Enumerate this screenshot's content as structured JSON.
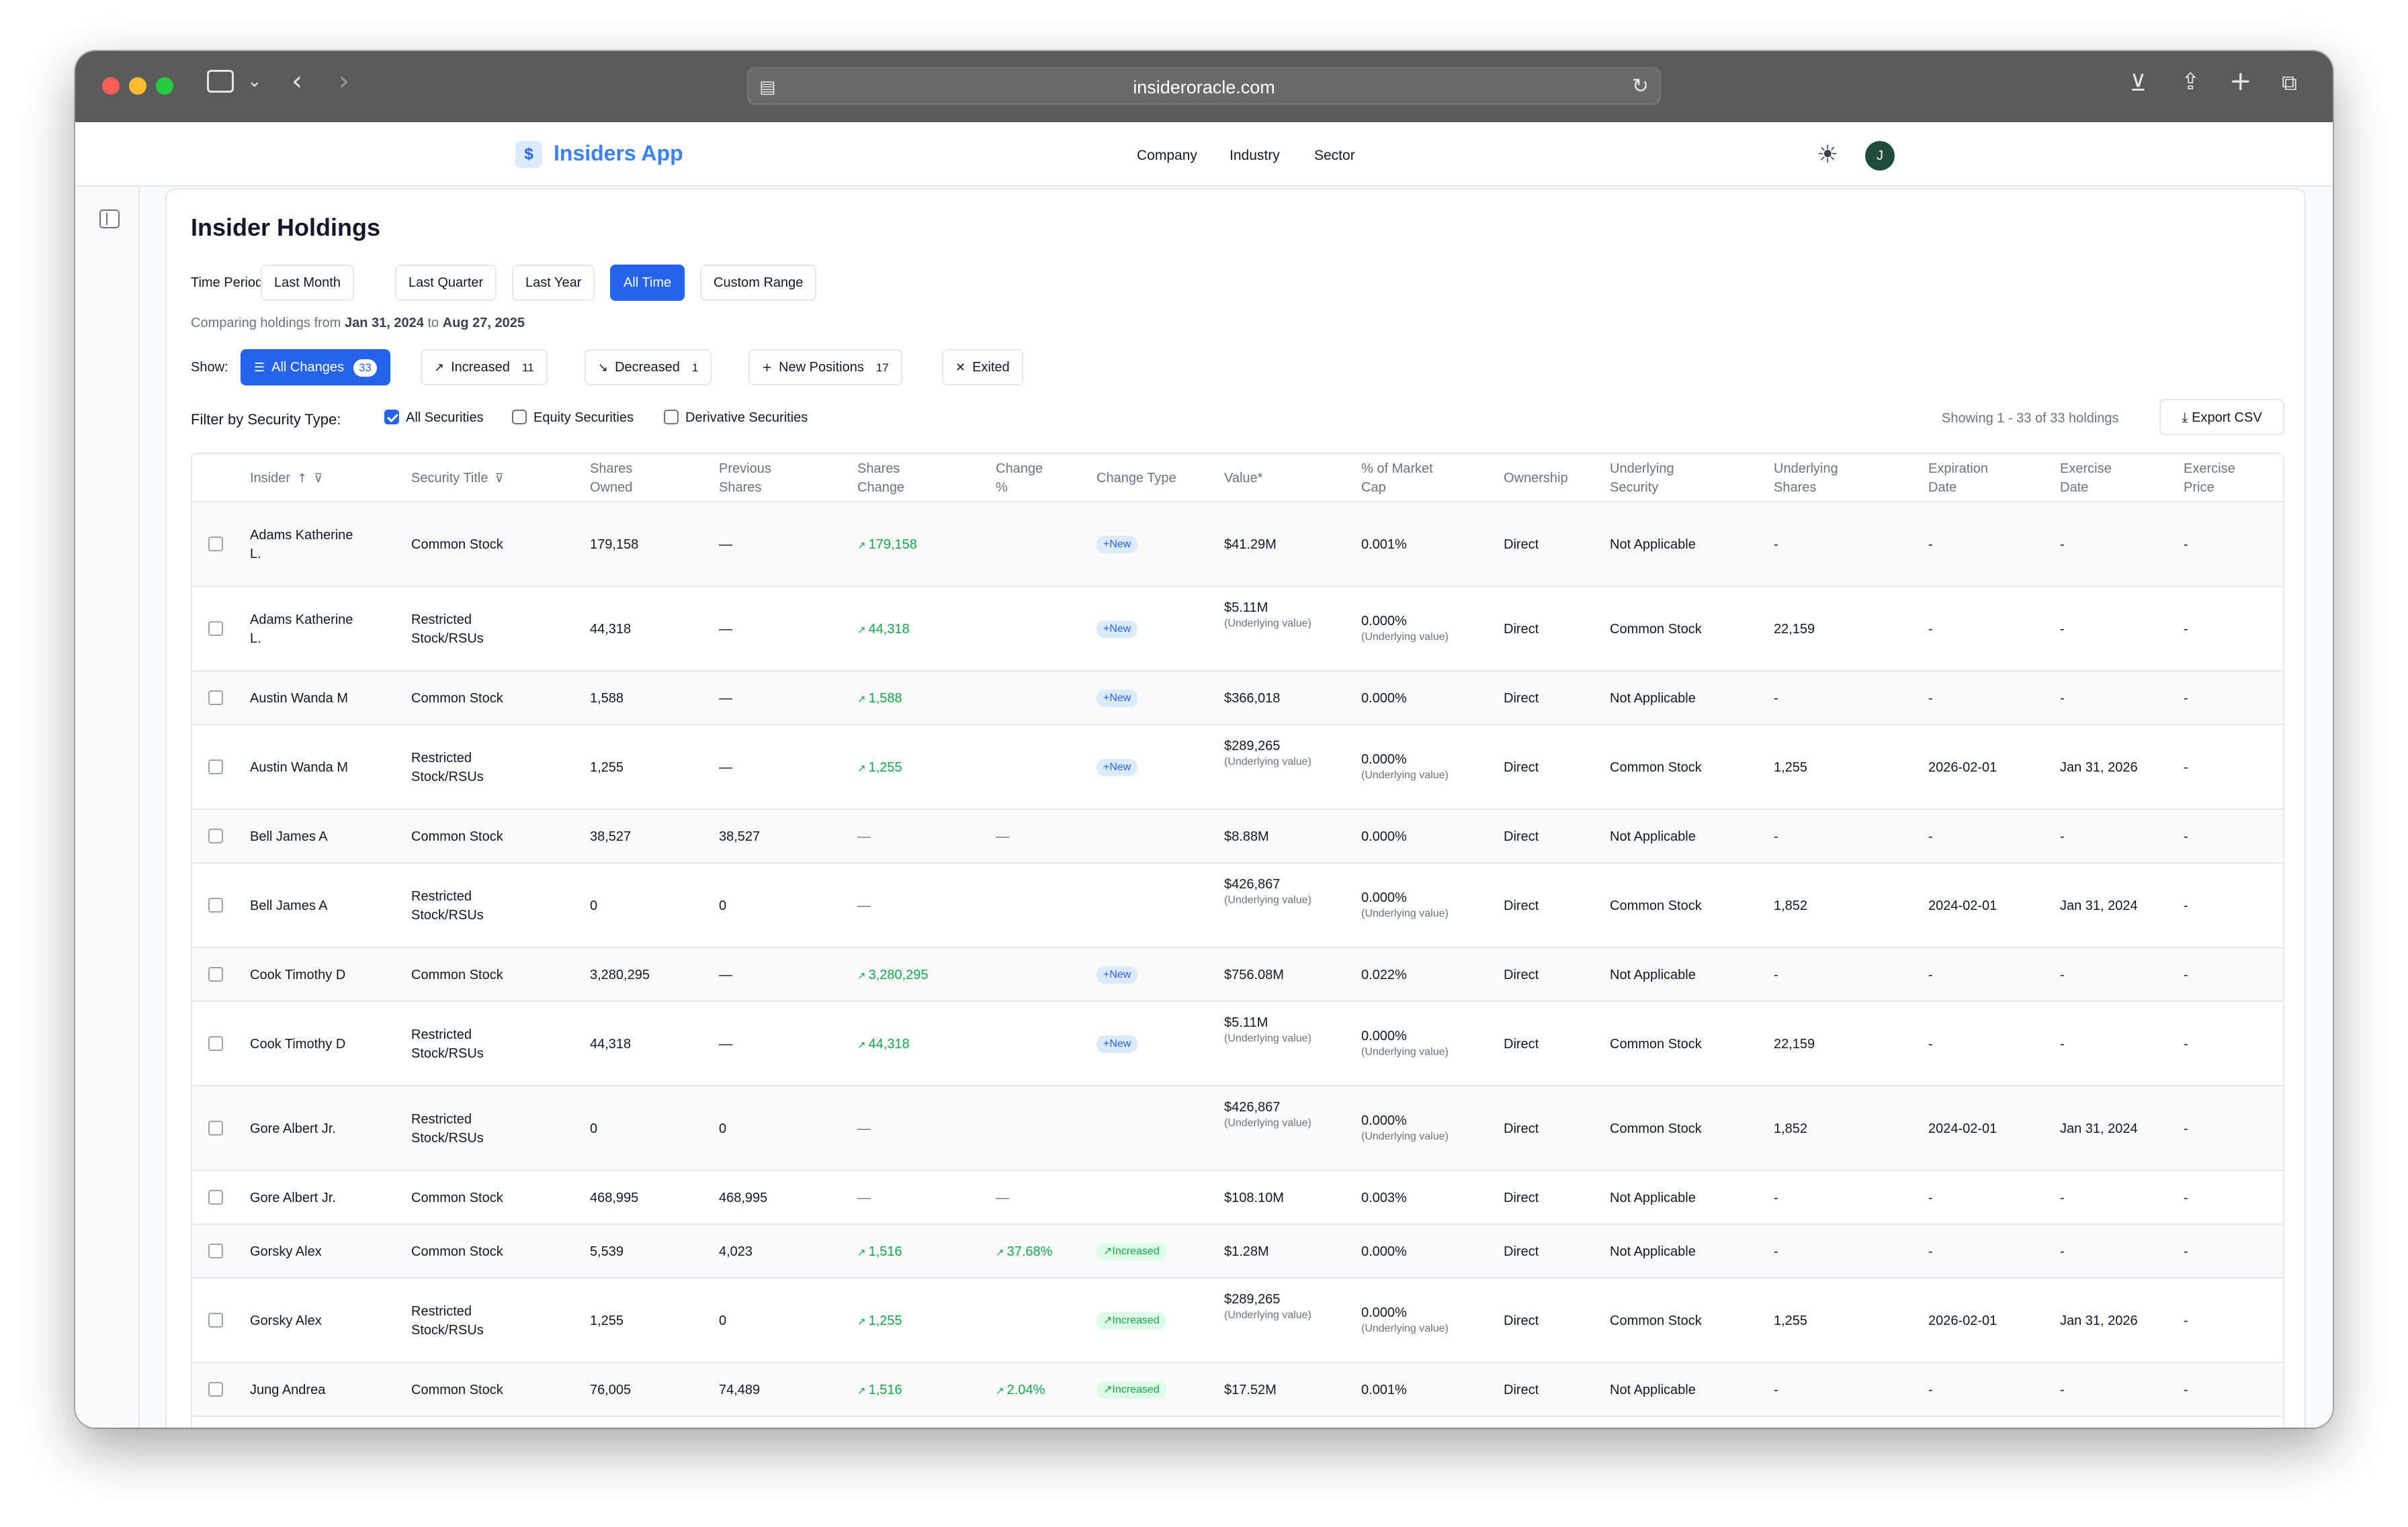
{
  "browser": {
    "url": "insideroracle.com"
  },
  "header": {
    "logo_glyph": "$",
    "app_name": "Insiders App",
    "nav": [
      "Company",
      "Industry",
      "Sector"
    ],
    "avatar_initial": "J"
  },
  "page": {
    "title": "Insider Holdings",
    "time_period_label": "Time Period:",
    "time_periods": [
      "Last Month",
      "Last Quarter",
      "Last Year",
      "All Time",
      "Custom Range"
    ],
    "active_period": "All Time",
    "compare_prefix": "Comparing holdings from",
    "compare_from": "Jan 31, 2024",
    "compare_to_word": "to",
    "compare_to": "Aug 27, 2025",
    "show_label": "Show:",
    "show_filters": [
      {
        "label": "All Changes",
        "count": "33",
        "icon": "list-icon"
      },
      {
        "label": "Increased",
        "count": "11",
        "icon": "arrow-up-right-icon"
      },
      {
        "label": "Decreased",
        "count": "1",
        "icon": "arrow-down-right-icon"
      },
      {
        "label": "New Positions",
        "count": "17",
        "icon": "plus-icon"
      },
      {
        "label": "Exited",
        "count": "",
        "icon": "x-icon"
      }
    ],
    "security_filter_label": "Filter by Security Type:",
    "security_types": [
      {
        "label": "All Securities",
        "checked": true
      },
      {
        "label": "Equity Securities",
        "checked": false
      },
      {
        "label": "Derivative Securities",
        "checked": false
      }
    ],
    "showing_text": "Showing 1 - 33 of 33 holdings",
    "export_label": "Export CSV"
  },
  "table": {
    "columns": [
      [
        "Insider"
      ],
      [
        "Security Title"
      ],
      [
        "Shares",
        "Owned"
      ],
      [
        "Previous",
        "Shares"
      ],
      [
        "Shares",
        "Change"
      ],
      [
        "Change",
        "%"
      ],
      [
        "Change Type"
      ],
      [
        "Value*"
      ],
      [
        "% of Market",
        "Cap"
      ],
      [
        "Ownership"
      ],
      [
        "Underlying",
        "Security"
      ],
      [
        "Underlying",
        "Shares"
      ],
      [
        "Expiration",
        "Date"
      ],
      [
        "Exercise",
        "Date"
      ],
      [
        "Exercise",
        "Price"
      ]
    ],
    "underlying_note": "(Underlying value)",
    "rows": [
      {
        "insider": [
          "Adams Katherine",
          "L."
        ],
        "security": [
          "Common Stock"
        ],
        "owned": "179,158",
        "previous": "—",
        "change": "179,158",
        "change_dir": "up",
        "pct": "",
        "pct_dir": "",
        "type": "New",
        "value": "$41.29M",
        "value_sub": false,
        "mcap": "0.001%",
        "mcap_sub": false,
        "ownership": "Direct",
        "und_sec": "Not Applicable",
        "und_shares": "-",
        "exp": "-",
        "ex_date": "-",
        "ex_price": "-"
      },
      {
        "insider": [
          "Adams Katherine",
          "L."
        ],
        "security": [
          "Restricted",
          "Stock/RSUs"
        ],
        "owned": "44,318",
        "previous": "—",
        "change": "44,318",
        "change_dir": "up",
        "pct": "",
        "pct_dir": "",
        "type": "New",
        "value": "$5.11M",
        "value_sub": true,
        "mcap": "0.000%",
        "mcap_sub": true,
        "ownership": "Direct",
        "und_sec": "Common Stock",
        "und_shares": "22,159",
        "exp": "-",
        "ex_date": "-",
        "ex_price": "-"
      },
      {
        "insider": [
          "Austin Wanda M"
        ],
        "security": [
          "Common Stock"
        ],
        "owned": "1,588",
        "previous": "—",
        "change": "1,588",
        "change_dir": "up",
        "pct": "",
        "pct_dir": "",
        "type": "New",
        "value": "$366,018",
        "value_sub": false,
        "mcap": "0.000%",
        "mcap_sub": false,
        "ownership": "Direct",
        "und_sec": "Not Applicable",
        "und_shares": "-",
        "exp": "-",
        "ex_date": "-",
        "ex_price": "-"
      },
      {
        "insider": [
          "Austin Wanda M"
        ],
        "security": [
          "Restricted",
          "Stock/RSUs"
        ],
        "owned": "1,255",
        "previous": "—",
        "change": "1,255",
        "change_dir": "up",
        "pct": "",
        "pct_dir": "",
        "type": "New",
        "value": "$289,265",
        "value_sub": true,
        "mcap": "0.000%",
        "mcap_sub": true,
        "ownership": "Direct",
        "und_sec": "Common Stock",
        "und_shares": "1,255",
        "exp": "2026-02-01",
        "ex_date": "Jan 31, 2026",
        "ex_price": "-"
      },
      {
        "insider": [
          "Bell James A"
        ],
        "security": [
          "Common Stock"
        ],
        "owned": "38,527",
        "previous": "38,527",
        "change": "—",
        "change_dir": "",
        "pct": "—",
        "pct_dir": "",
        "type": "",
        "value": "$8.88M",
        "value_sub": false,
        "mcap": "0.000%",
        "mcap_sub": false,
        "ownership": "Direct",
        "und_sec": "Not Applicable",
        "und_shares": "-",
        "exp": "-",
        "ex_date": "-",
        "ex_price": "-"
      },
      {
        "insider": [
          "Bell James A"
        ],
        "security": [
          "Restricted",
          "Stock/RSUs"
        ],
        "owned": "0",
        "previous": "0",
        "change": "—",
        "change_dir": "",
        "pct": "",
        "pct_dir": "",
        "type": "",
        "value": "$426,867",
        "value_sub": true,
        "mcap": "0.000%",
        "mcap_sub": true,
        "ownership": "Direct",
        "und_sec": "Common Stock",
        "und_shares": "1,852",
        "exp": "2024-02-01",
        "ex_date": "Jan 31, 2024",
        "ex_price": "-"
      },
      {
        "insider": [
          "Cook Timothy D"
        ],
        "security": [
          "Common Stock"
        ],
        "owned": "3,280,295",
        "previous": "—",
        "change": "3,280,295",
        "change_dir": "up",
        "pct": "",
        "pct_dir": "",
        "type": "New",
        "value": "$756.08M",
        "value_sub": false,
        "mcap": "0.022%",
        "mcap_sub": false,
        "ownership": "Direct",
        "und_sec": "Not Applicable",
        "und_shares": "-",
        "exp": "-",
        "ex_date": "-",
        "ex_price": "-"
      },
      {
        "insider": [
          "Cook Timothy D"
        ],
        "security": [
          "Restricted",
          "Stock/RSUs"
        ],
        "owned": "44,318",
        "previous": "—",
        "change": "44,318",
        "change_dir": "up",
        "pct": "",
        "pct_dir": "",
        "type": "New",
        "value": "$5.11M",
        "value_sub": true,
        "mcap": "0.000%",
        "mcap_sub": true,
        "ownership": "Direct",
        "und_sec": "Common Stock",
        "und_shares": "22,159",
        "exp": "-",
        "ex_date": "-",
        "ex_price": "-"
      },
      {
        "insider": [
          "Gore Albert Jr."
        ],
        "security": [
          "Restricted",
          "Stock/RSUs"
        ],
        "owned": "0",
        "previous": "0",
        "change": "—",
        "change_dir": "",
        "pct": "",
        "pct_dir": "",
        "type": "",
        "value": "$426,867",
        "value_sub": true,
        "mcap": "0.000%",
        "mcap_sub": true,
        "ownership": "Direct",
        "und_sec": "Common Stock",
        "und_shares": "1,852",
        "exp": "2024-02-01",
        "ex_date": "Jan 31, 2024",
        "ex_price": "-"
      },
      {
        "insider": [
          "Gore Albert Jr."
        ],
        "security": [
          "Common Stock"
        ],
        "owned": "468,995",
        "previous": "468,995",
        "change": "—",
        "change_dir": "",
        "pct": "—",
        "pct_dir": "",
        "type": "",
        "value": "$108.10M",
        "value_sub": false,
        "mcap": "0.003%",
        "mcap_sub": false,
        "ownership": "Direct",
        "und_sec": "Not Applicable",
        "und_shares": "-",
        "exp": "-",
        "ex_date": "-",
        "ex_price": "-"
      },
      {
        "insider": [
          "Gorsky Alex"
        ],
        "security": [
          "Common Stock"
        ],
        "owned": "5,539",
        "previous": "4,023",
        "change": "1,516",
        "change_dir": "up",
        "pct": "37.68%",
        "pct_dir": "up",
        "type": "Increased",
        "value": "$1.28M",
        "value_sub": false,
        "mcap": "0.000%",
        "mcap_sub": false,
        "ownership": "Direct",
        "und_sec": "Not Applicable",
        "und_shares": "-",
        "exp": "-",
        "ex_date": "-",
        "ex_price": "-"
      },
      {
        "insider": [
          "Gorsky Alex"
        ],
        "security": [
          "Restricted",
          "Stock/RSUs"
        ],
        "owned": "1,255",
        "previous": "0",
        "change": "1,255",
        "change_dir": "up",
        "pct": "",
        "pct_dir": "",
        "type": "Increased",
        "value": "$289,265",
        "value_sub": true,
        "mcap": "0.000%",
        "mcap_sub": true,
        "ownership": "Direct",
        "und_sec": "Common Stock",
        "und_shares": "1,255",
        "exp": "2026-02-01",
        "ex_date": "Jan 31, 2026",
        "ex_price": "-"
      },
      {
        "insider": [
          "Jung Andrea"
        ],
        "security": [
          "Common Stock"
        ],
        "owned": "76,005",
        "previous": "74,489",
        "change": "1,516",
        "change_dir": "up",
        "pct": "2.04%",
        "pct_dir": "up",
        "type": "Increased",
        "value": "$17.52M",
        "value_sub": false,
        "mcap": "0.001%",
        "mcap_sub": false,
        "ownership": "Direct",
        "und_sec": "Not Applicable",
        "und_shares": "-",
        "exp": "-",
        "ex_date": "-",
        "ex_price": "-"
      }
    ]
  },
  "colors": {
    "accent": "#2563eb",
    "positive": "#16a34a",
    "new_badge_bg": "#dbeafe",
    "increased_badge_bg": "#dcfce7"
  }
}
